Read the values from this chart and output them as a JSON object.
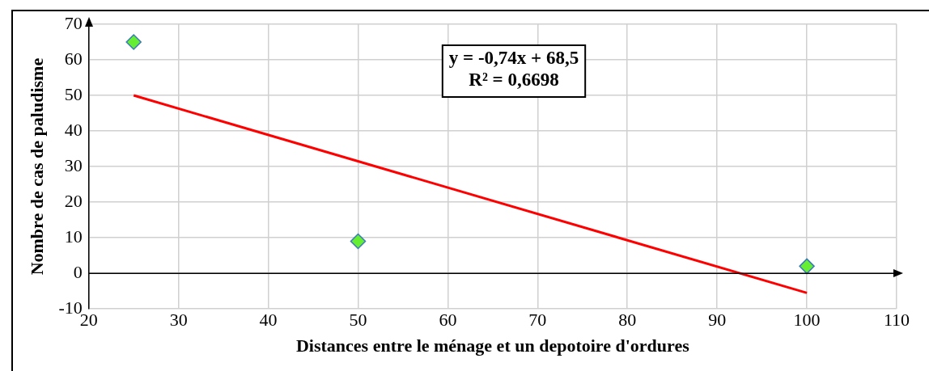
{
  "chart_data": {
    "type": "scatter",
    "xlabel": "Distances entre le ménage et un depotoire d'ordures",
    "ylabel": "Nombre de cas de paludisme",
    "x": [
      25,
      50,
      100
    ],
    "series": [
      {
        "color": "#66ee33",
        "values": [
          65,
          9,
          2
        ],
        "marker": "diamond"
      },
      {
        "type": "line",
        "x": [
          25,
          100
        ],
        "color": "#ff0000",
        "values": [
          50,
          -5.5
        ],
        "marker": "none",
        "line_style": "solid"
      }
    ],
    "xlim": [
      20,
      110
    ],
    "xticks": [
      20,
      30,
      40,
      50,
      60,
      70,
      80,
      90,
      100,
      110
    ],
    "ylim": [
      -10,
      70
    ],
    "yticks": [
      -10,
      0,
      10,
      20,
      30,
      40,
      50,
      60,
      70
    ],
    "grid": true,
    "legend": false,
    "annotations": [
      "y = -0,74x + 68,5",
      "R² = 0,6698"
    ]
  }
}
